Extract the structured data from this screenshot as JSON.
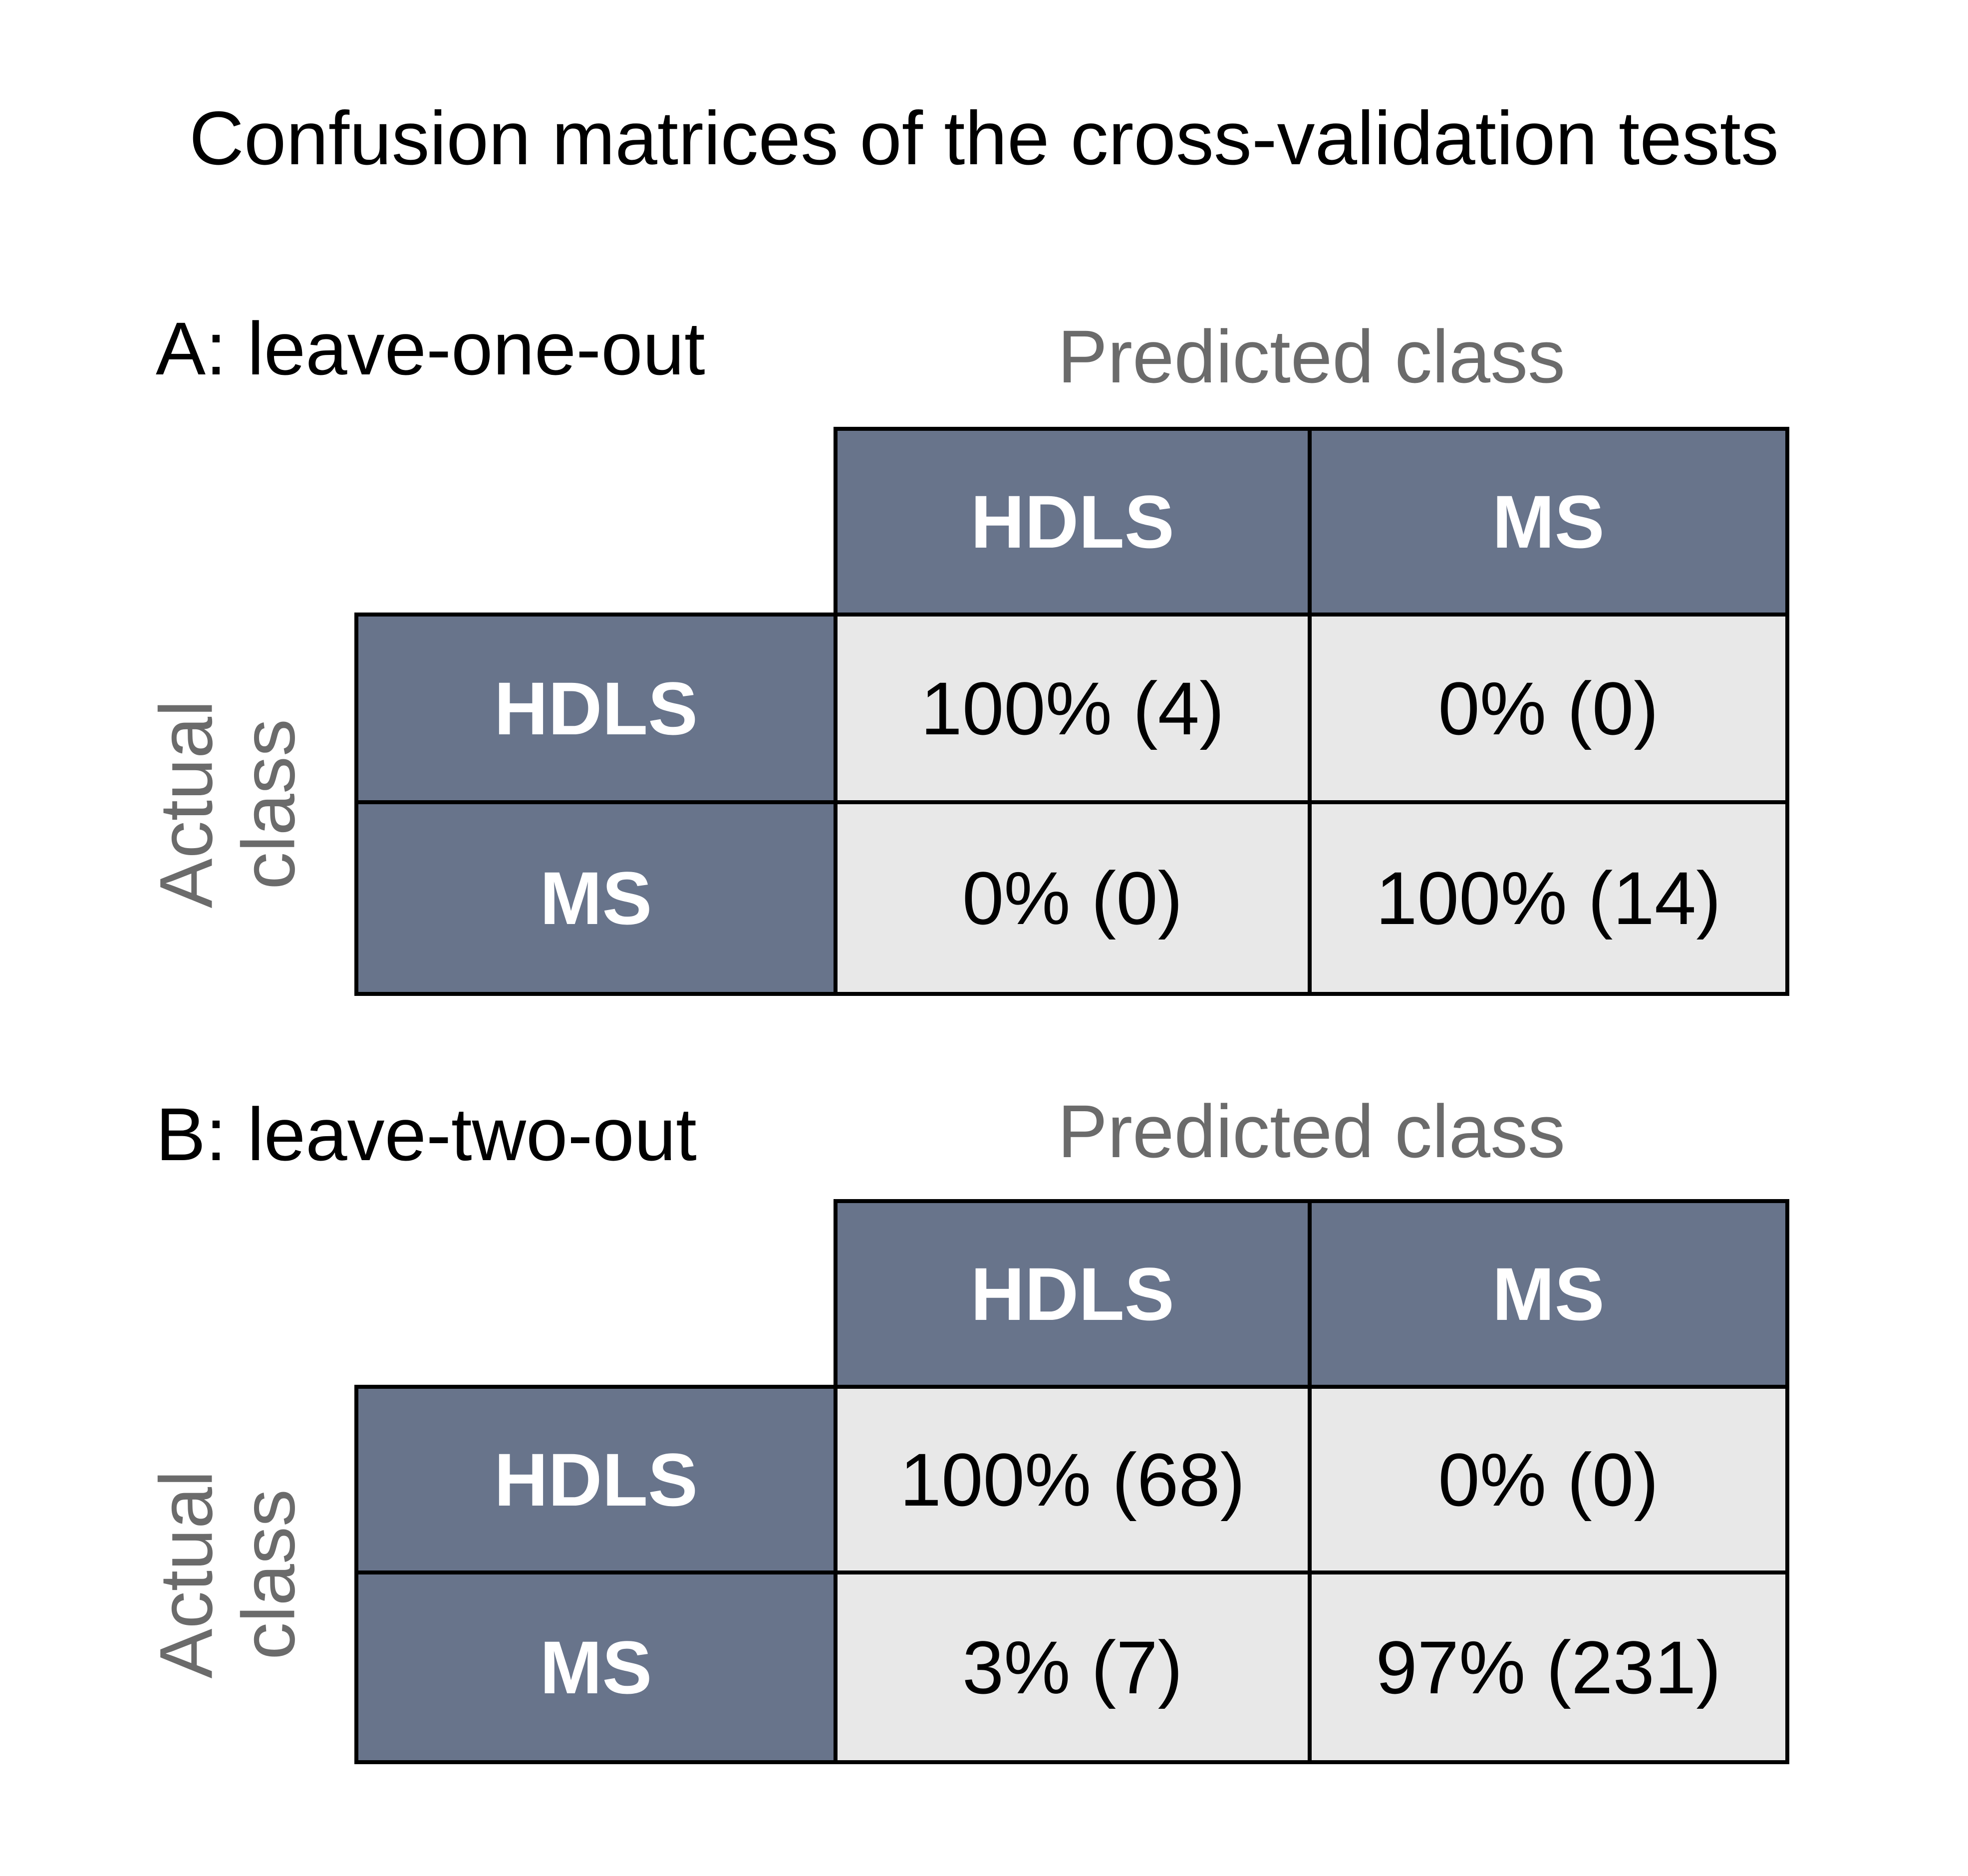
{
  "title": "Confusion matrices of the cross-validation tests",
  "colors": {
    "header_bg": "#68748b",
    "cell_bg": "#e8e8e8",
    "muted_text": "#6b6b6b",
    "header_text": "#ffffff",
    "border": "#000000"
  },
  "chart_data": [
    {
      "type": "table",
      "section_label": "A: leave-one-out",
      "xlabel": "Predicted class",
      "ylabel": "Actual class",
      "ylabel_lines": [
        "Actual",
        "class"
      ],
      "col_headers": [
        "HDLS",
        "MS"
      ],
      "row_headers": [
        "HDLS",
        "MS"
      ],
      "cells": [
        [
          "100% (4)",
          "0% (0)"
        ],
        [
          "0% (0)",
          "100% (14)"
        ]
      ],
      "percent": [
        [
          100,
          0
        ],
        [
          0,
          100
        ]
      ],
      "counts": [
        [
          4,
          0
        ],
        [
          0,
          14
        ]
      ]
    },
    {
      "type": "table",
      "section_label": "B: leave-two-out",
      "xlabel": "Predicted class",
      "ylabel": "Actual class",
      "ylabel_lines": [
        "Actual",
        "class"
      ],
      "col_headers": [
        "HDLS",
        "MS"
      ],
      "row_headers": [
        "HDLS",
        "MS"
      ],
      "cells": [
        [
          "100% (68)",
          "0% (0)"
        ],
        [
          "3% (7)",
          "97% (231)"
        ]
      ],
      "percent": [
        [
          100,
          0
        ],
        [
          3,
          97
        ]
      ],
      "counts": [
        [
          68,
          0
        ],
        [
          7,
          231
        ]
      ]
    }
  ]
}
